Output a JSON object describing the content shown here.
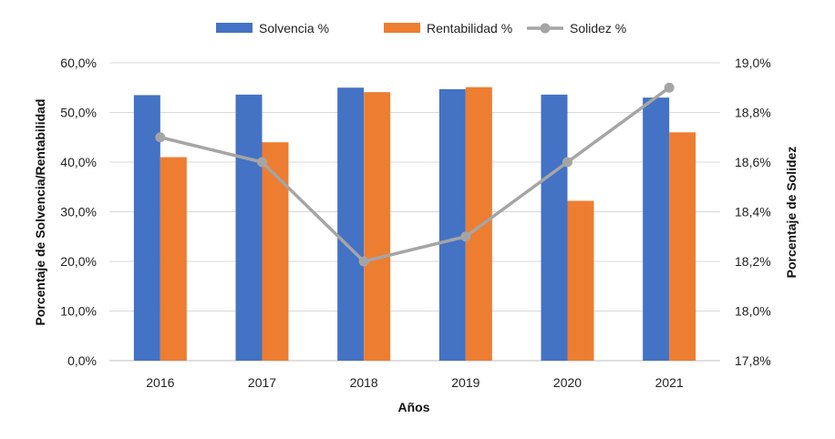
{
  "chart_data": {
    "type": "bar",
    "categories": [
      "2016",
      "2017",
      "2018",
      "2019",
      "2020",
      "2021"
    ],
    "series": [
      {
        "name": "Solvencia %",
        "type": "bar",
        "axis": "left",
        "color": "#4472C4",
        "values": [
          53.5,
          53.6,
          55.0,
          54.7,
          53.6,
          53.0
        ]
      },
      {
        "name": "Rentabilidad %",
        "type": "bar",
        "axis": "left",
        "color": "#ED7D31",
        "values": [
          41.0,
          44.0,
          54.1,
          55.1,
          32.2,
          46.0
        ]
      },
      {
        "name": "Solidez %",
        "type": "line",
        "axis": "right",
        "color": "#A5A5A5",
        "values": [
          18.7,
          18.6,
          18.2,
          18.3,
          18.6,
          18.9
        ]
      }
    ],
    "xlabel": "Años",
    "ylabel": "Porcentaje de Solvencia/Rentabilidad",
    "y2label": "Porcentaje de Solidez",
    "ylim": [
      0,
      60
    ],
    "yticks": [
      0,
      10,
      20,
      30,
      40,
      50,
      60
    ],
    "ytick_labels": [
      "0,0%",
      "10,0%",
      "20,0%",
      "30,0%",
      "40,0%",
      "50,0%",
      "60,0%"
    ],
    "y2lim": [
      17.8,
      19.0
    ],
    "y2ticks": [
      17.8,
      18.0,
      18.2,
      18.4,
      18.6,
      18.8,
      19.0
    ],
    "y2tick_labels": [
      "17,8%",
      "18,0%",
      "18,2%",
      "18,4%",
      "18,6%",
      "18,8%",
      "19,0%"
    ],
    "grid": true,
    "legend_position": "top-center"
  }
}
